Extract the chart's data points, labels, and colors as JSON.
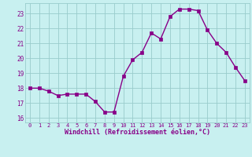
{
  "x": [
    0,
    1,
    2,
    3,
    4,
    5,
    6,
    7,
    8,
    9,
    10,
    11,
    12,
    13,
    14,
    15,
    16,
    17,
    18,
    19,
    20,
    21,
    22,
    23
  ],
  "y": [
    18.0,
    18.0,
    17.8,
    17.5,
    17.6,
    17.6,
    17.6,
    17.1,
    16.4,
    16.4,
    18.8,
    19.9,
    20.4,
    21.7,
    21.3,
    22.8,
    23.3,
    23.3,
    23.2,
    21.9,
    21.0,
    20.4,
    19.4,
    18.5
  ],
  "line_color": "#880088",
  "marker": "s",
  "markersize": 2.5,
  "linewidth": 1.0,
  "bg_color": "#c8f0f0",
  "grid_color": "#99cccc",
  "xlabel": "Windchill (Refroidissement éolien,°C)",
  "xlabel_color": "#880088",
  "ylabel_ticks": [
    16,
    17,
    18,
    19,
    20,
    21,
    22,
    23
  ],
  "xtick_labels": [
    "0",
    "1",
    "2",
    "3",
    "4",
    "5",
    "6",
    "7",
    "8",
    "9",
    "10",
    "11",
    "12",
    "13",
    "14",
    "15",
    "16",
    "17",
    "18",
    "19",
    "20",
    "21",
    "22",
    "23"
  ],
  "ylim": [
    15.7,
    23.7
  ],
  "xlim": [
    -0.5,
    23.5
  ],
  "tick_color": "#880088",
  "tick_fontsize": 5.0,
  "ylabel_fontsize": 5.5,
  "xlabel_fontsize": 6.0
}
